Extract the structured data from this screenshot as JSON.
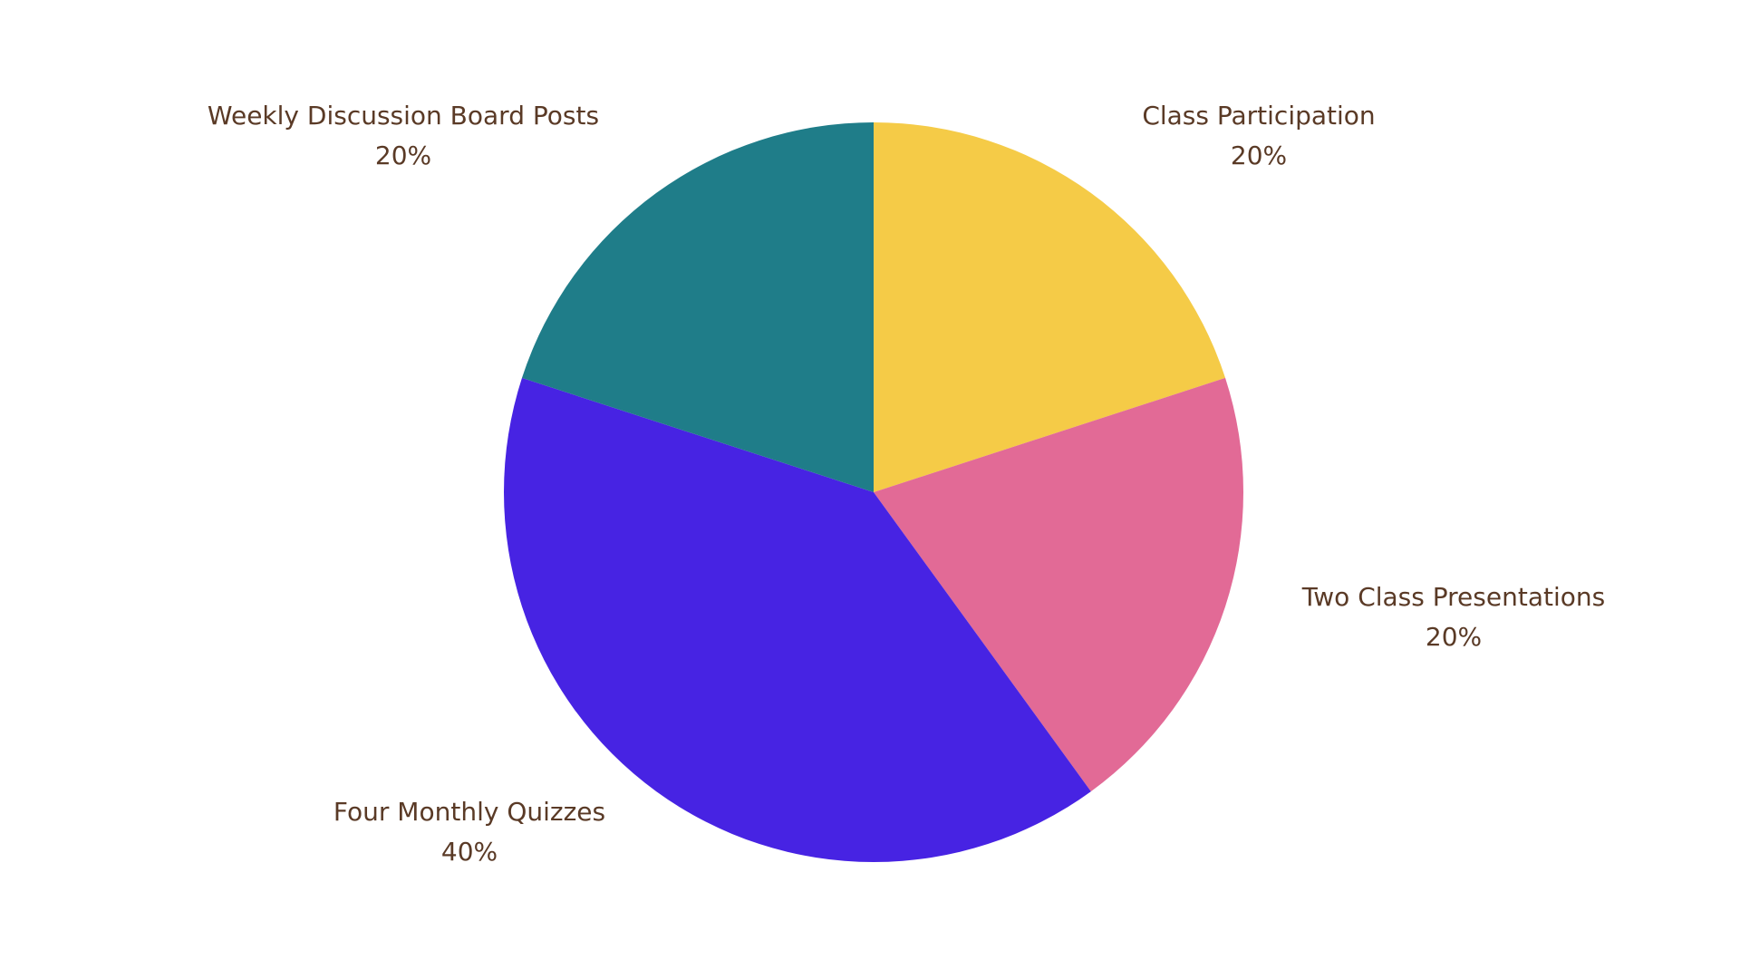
{
  "chart_data": {
    "type": "pie",
    "title": "",
    "start_angle_deg": 0,
    "direction": "clockwise",
    "slices": [
      {
        "label": "Class Participation",
        "value": 20,
        "value_label": "20%",
        "color": "#F5CB47"
      },
      {
        "label": "Two Class Presentations",
        "value": 20,
        "value_label": "20%",
        "color": "#E26A96"
      },
      {
        "label": "Four Monthly Quizzes",
        "value": 40,
        "value_label": "40%",
        "color": "#4723E3"
      },
      {
        "label": "Weekly Discussion Board Posts",
        "value": 20,
        "value_label": "20%",
        "color": "#1F7D89"
      }
    ]
  },
  "label_color": "#5A3A26"
}
